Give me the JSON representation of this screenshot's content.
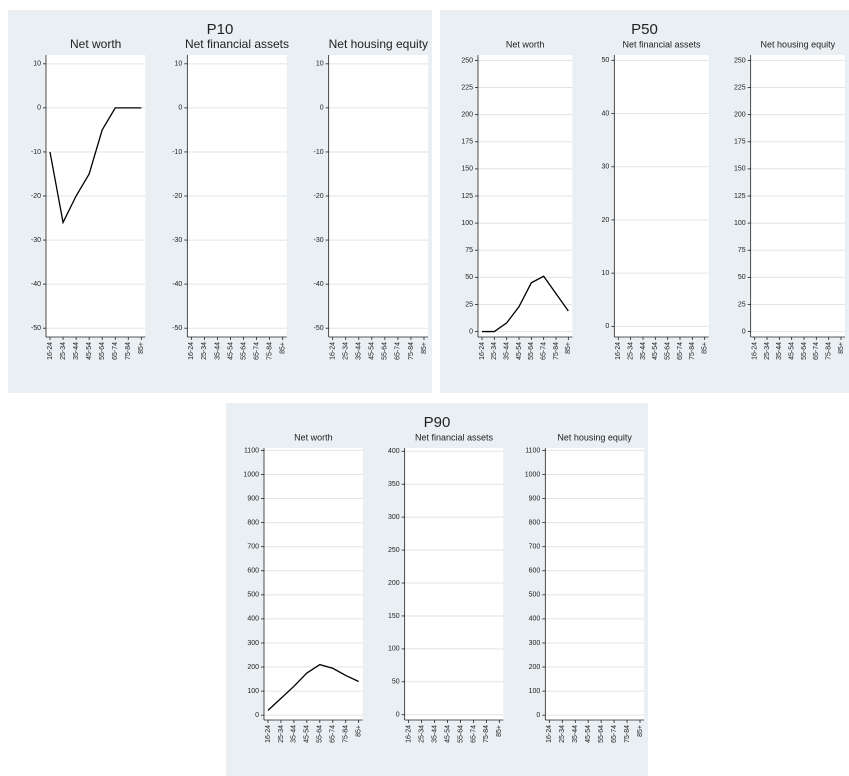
{
  "chart_data": [
    {
      "title": "P10",
      "charts": [
        {
          "type": "line",
          "title": "Net worth",
          "categories": [
            "16-24",
            "25-34",
            "35-44",
            "45-54",
            "55-64",
            "65-74",
            "75-84",
            "85+"
          ],
          "values": [
            -10,
            -26,
            -20,
            -15,
            -5,
            0,
            0,
            0
          ],
          "color": "#000000",
          "ylim": [
            -52,
            12
          ],
          "yticks": [
            -50,
            -40,
            -30,
            -20,
            -10,
            0,
            10
          ],
          "grid": true
        },
        {
          "type": "line",
          "title": "Net financial assets",
          "categories": [
            "16-24",
            "25-34",
            "35-44",
            "45-54",
            "55-64",
            "65-74",
            "75-84",
            "85+"
          ],
          "color": "#000000",
          "ylim": [
            -52,
            12
          ],
          "yticks": [
            -50,
            -40,
            -30,
            -20,
            -10,
            0,
            10
          ],
          "grid": true
        },
        {
          "type": "line",
          "title": "Net housing equity",
          "categories": [
            "16-24",
            "25-34",
            "35-44",
            "45-54",
            "55-64",
            "65-74",
            "75-84",
            "85+"
          ],
          "color": "#000000",
          "ylim": [
            -52,
            12
          ],
          "yticks": [
            -50,
            -40,
            -30,
            -20,
            -10,
            0,
            10
          ],
          "grid": true
        }
      ]
    },
    {
      "title": "P50",
      "charts": [
        {
          "type": "line",
          "title": "Net worth",
          "categories": [
            "16-24",
            "25-34",
            "35-44",
            "45-54",
            "55-64",
            "65-74",
            "75-84",
            "85+"
          ],
          "values": [
            0,
            0,
            8,
            23,
            45,
            51,
            35,
            19
          ],
          "color": "#000000",
          "ylim": [
            -5,
            255
          ],
          "yticks": [
            0,
            25,
            50,
            75,
            100,
            125,
            150,
            175,
            200,
            225,
            250
          ],
          "grid": true
        },
        {
          "type": "line",
          "title": "Net financial assets",
          "categories": [
            "16-24",
            "25-34",
            "35-44",
            "45-54",
            "55-64",
            "65-74",
            "75-84",
            "85+"
          ],
          "color": "#000000",
          "ylim": [
            -2,
            51
          ],
          "yticks": [
            0,
            10,
            20,
            30,
            40,
            50
          ],
          "grid": true
        },
        {
          "type": "line",
          "title": "Net housing equity",
          "categories": [
            "16-24",
            "25-34",
            "35-44",
            "45-54",
            "55-64",
            "65-74",
            "75-84",
            "85+"
          ],
          "color": "#000000",
          "ylim": [
            -5,
            255
          ],
          "yticks": [
            0,
            25,
            50,
            75,
            100,
            125,
            150,
            175,
            200,
            225,
            250
          ],
          "grid": true
        }
      ]
    },
    {
      "title": "P90",
      "charts": [
        {
          "type": "line",
          "title": "Net worth",
          "categories": [
            "16-24",
            "25-34",
            "35-44",
            "45-54",
            "55-64",
            "65-74",
            "75-84",
            "85+"
          ],
          "values": [
            20,
            70,
            120,
            175,
            210,
            195,
            165,
            140
          ],
          "color": "#000000",
          "ylim": [
            -20,
            1110
          ],
          "yticks": [
            0,
            100,
            200,
            300,
            400,
            500,
            600,
            700,
            800,
            900,
            1000,
            1100
          ],
          "grid": true
        },
        {
          "type": "line",
          "title": "Net financial assets",
          "categories": [
            "16-24",
            "25-34",
            "35-44",
            "45-54",
            "55-64",
            "65-74",
            "75-84",
            "85+"
          ],
          "color": "#000000",
          "ylim": [
            -8,
            405
          ],
          "yticks": [
            0,
            50,
            100,
            150,
            200,
            250,
            300,
            350,
            400
          ],
          "grid": true
        },
        {
          "type": "line",
          "title": "Net housing equity",
          "categories": [
            "16-24",
            "25-34",
            "35-44",
            "45-54",
            "55-64",
            "65-74",
            "75-84",
            "85+"
          ],
          "color": "#000000",
          "ylim": [
            -20,
            1110
          ],
          "yticks": [
            0,
            100,
            200,
            300,
            400,
            500,
            600,
            700,
            800,
            900,
            1000,
            1100
          ],
          "grid": true
        }
      ]
    }
  ]
}
